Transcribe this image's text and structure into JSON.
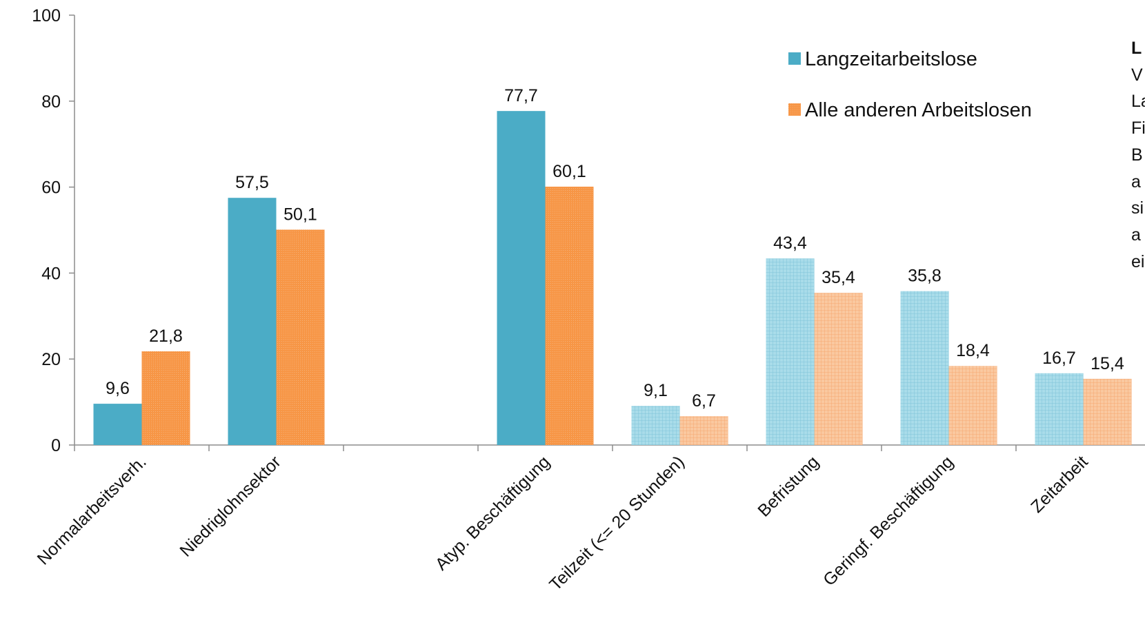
{
  "chart_data": {
    "type": "bar",
    "categories": [
      "Normalarbeitsverh.",
      "Niedriglohnsektor",
      "",
      "Atyp. Beschäftigung",
      "Teilzeit (<= 20 Stunden)",
      "Befristung",
      "Geringf. Beschäftigung",
      "Zeitarbeit"
    ],
    "series": [
      {
        "name": "Langzeitarbeitslose",
        "values": [
          9.6,
          57.5,
          null,
          77.7,
          9.1,
          43.4,
          35.8,
          16.7
        ],
        "labels": [
          "9,6",
          "57,5",
          "",
          "77,7",
          "9,1",
          "43,4",
          "35,8",
          "16,7"
        ],
        "color": "#4BACC6",
        "light_color": "#A9DCEA"
      },
      {
        "name": "Alle anderen Arbeitslosen",
        "values": [
          21.8,
          50.1,
          null,
          60.1,
          6.7,
          35.4,
          18.4,
          15.4
        ],
        "labels": [
          "21,8",
          "50,1",
          "",
          "60,1",
          "6,7",
          "35,4",
          "18,4",
          "15,4"
        ],
        "color": "#F79646",
        "light_color": "#FAC8A0"
      }
    ],
    "hatched_categories": [
      4,
      5,
      6,
      7
    ],
    "ylim": [
      0,
      100
    ],
    "yticks": [
      0,
      20,
      40,
      60,
      80,
      100
    ],
    "ytick_labels": [
      "0",
      "20",
      "40",
      "60",
      "80",
      "100"
    ],
    "grid": false,
    "legend_position": "top-right",
    "side_text_fragment": {
      "bold_line": "L",
      "lines": [
        "V",
        "La",
        "Fi",
        "B",
        "a",
        "si",
        "a",
        "ei"
      ]
    }
  }
}
